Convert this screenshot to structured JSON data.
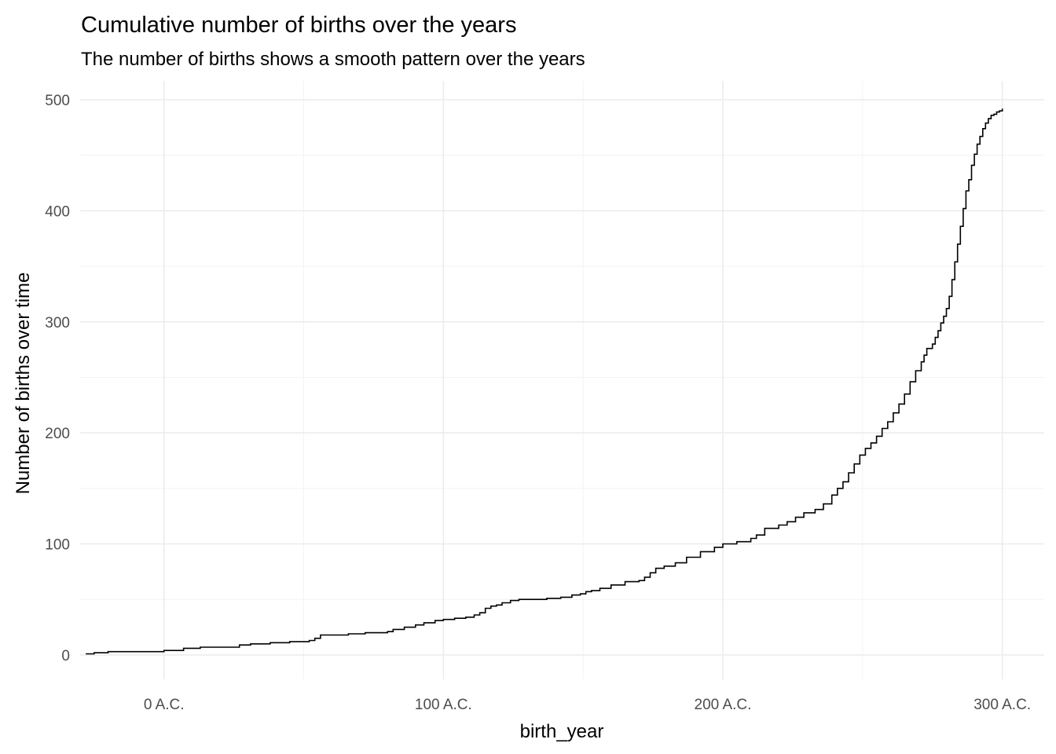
{
  "chart_data": {
    "type": "line",
    "step": true,
    "title": "Cumulative number of births over the years",
    "subtitle": "The number of births shows a smooth pattern over the years",
    "xlabel": "birth_year",
    "ylabel": "Number of births over time",
    "xlim": [
      -30,
      315
    ],
    "ylim": [
      -22,
      517
    ],
    "x_ticks": [
      {
        "value": 0,
        "label": "0 A.C."
      },
      {
        "value": 100,
        "label": "100 A.C."
      },
      {
        "value": 200,
        "label": "200 A.C."
      },
      {
        "value": 300,
        "label": "300 A.C."
      }
    ],
    "y_ticks": [
      {
        "value": 0,
        "label": "0"
      },
      {
        "value": 100,
        "label": "100"
      },
      {
        "value": 200,
        "label": "200"
      },
      {
        "value": 300,
        "label": "300"
      },
      {
        "value": 400,
        "label": "400"
      },
      {
        "value": 500,
        "label": "500"
      }
    ],
    "grid": true,
    "legend": "none",
    "line_color": "#000000",
    "series": [
      {
        "x": [
          -28,
          -25,
          -20,
          -10,
          0,
          7,
          13,
          22,
          27,
          31,
          38,
          45,
          52,
          54,
          56,
          60,
          66,
          72,
          75,
          80,
          82,
          86,
          90,
          93,
          97,
          100,
          104,
          108,
          111,
          113,
          115,
          117,
          119,
          121,
          124,
          127,
          132,
          137,
          142,
          146,
          149,
          151,
          153,
          156,
          160,
          165,
          170,
          172,
          174,
          176,
          179,
          183,
          187,
          192,
          197,
          200,
          205,
          210,
          212,
          215,
          220,
          223,
          226,
          229,
          233,
          236,
          239,
          241,
          243,
          245,
          247,
          249,
          251,
          253,
          255,
          257,
          259,
          261,
          263,
          265,
          267,
          269,
          271,
          272,
          273,
          275,
          276,
          277,
          278,
          279,
          280,
          281,
          282,
          283,
          284,
          285,
          286,
          287,
          288,
          289,
          290,
          291,
          292,
          293,
          294,
          295,
          296,
          297,
          298,
          299,
          300
        ],
        "y": [
          1,
          2,
          3,
          3,
          4,
          6,
          7,
          7,
          9,
          10,
          11,
          12,
          13,
          15,
          18,
          18,
          19,
          20,
          20,
          21,
          23,
          25,
          27,
          29,
          31,
          32,
          33,
          34,
          36,
          38,
          42,
          44,
          45,
          47,
          49,
          50,
          50,
          51,
          52,
          54,
          55,
          57,
          58,
          60,
          63,
          66,
          67,
          70,
          74,
          78,
          80,
          83,
          88,
          93,
          97,
          100,
          102,
          105,
          108,
          114,
          117,
          120,
          124,
          128,
          131,
          136,
          144,
          150,
          156,
          164,
          172,
          180,
          186,
          191,
          197,
          204,
          210,
          218,
          226,
          235,
          246,
          256,
          264,
          270,
          276,
          280,
          286,
          292,
          299,
          305,
          312,
          323,
          338,
          354,
          370,
          386,
          402,
          418,
          428,
          441,
          451,
          460,
          467,
          474,
          479,
          483,
          486,
          487,
          489,
          490,
          492
        ]
      }
    ]
  }
}
